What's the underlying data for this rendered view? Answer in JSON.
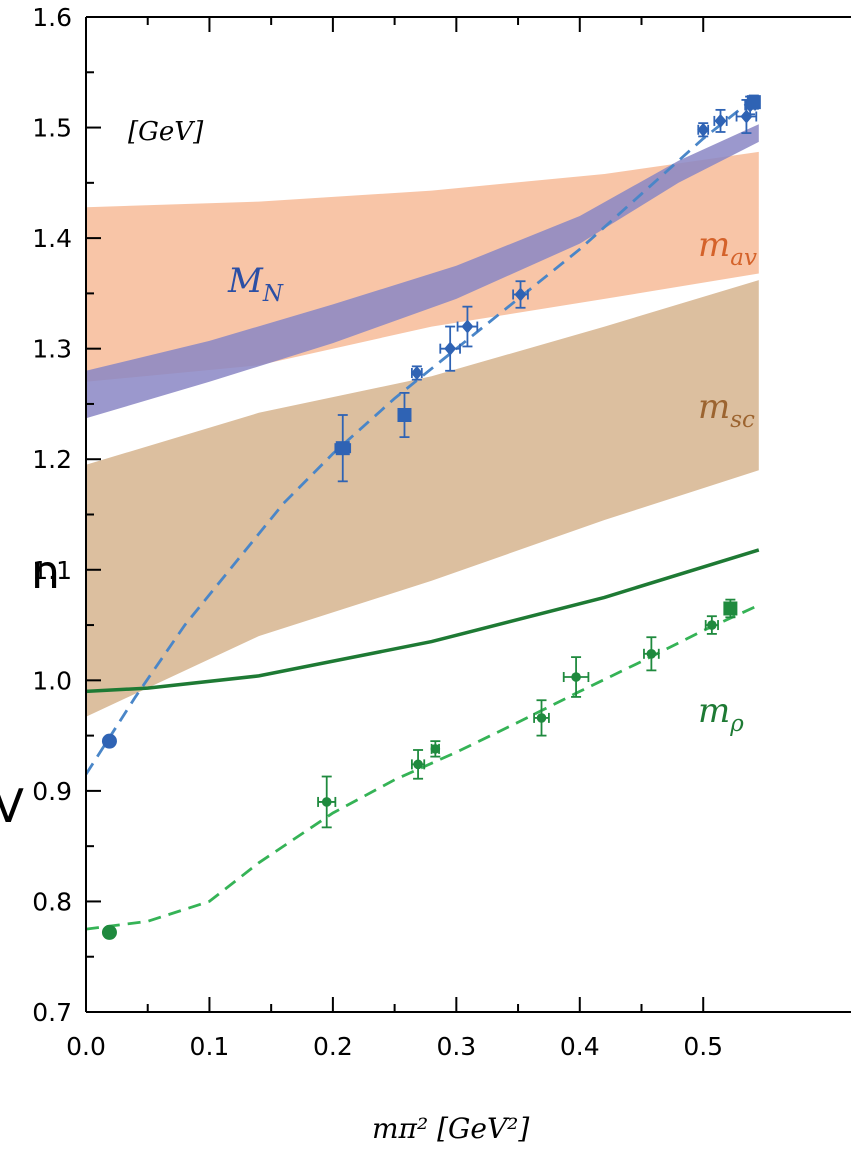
{
  "chart_data": {
    "type": "scatter",
    "units_label": "[GeV]",
    "xlabel": "mπ² [GeV²]",
    "xlim": [
      0.0,
      0.545
    ],
    "ylim": [
      0.7,
      1.6
    ],
    "x_ticks": [
      "0.0",
      "0.1",
      "0.2",
      "0.3",
      "0.4",
      "0.5"
    ],
    "y_ticks": [
      "0.7",
      "0.8",
      "0.9",
      "1.0",
      "1.1",
      "1.2",
      "1.3",
      "1.4",
      "1.5",
      "1.6"
    ],
    "clipped_left_text": [
      "n",
      "V"
    ],
    "labels": {
      "MN": {
        "base": "M",
        "sub": "N"
      },
      "mav": {
        "base": "m",
        "sub": "av"
      },
      "msc": {
        "base": "m",
        "sub": "sc"
      },
      "mrho": {
        "base": "m",
        "sub": "ρ"
      }
    },
    "colors": {
      "nucleon": "#2f63b4",
      "nucleon_dash": "#4a86c8",
      "rho": "#1f8a3e",
      "rho_dash": "#35b356",
      "rho_solid": "#1e7a34",
      "mav_band": "#f6b894",
      "msc_band": "#dcbf9f",
      "MN_band": "#8a86c4",
      "MN_label": "#2b4fa5",
      "mav_label": "#d4622a",
      "msc_label": "#9c6430",
      "mrho_label": "#1e7a34"
    },
    "bands": [
      {
        "name": "mav",
        "x": [
          0.0,
          0.14,
          0.28,
          0.42,
          0.545
        ],
        "lower": [
          1.27,
          1.285,
          1.32,
          1.345,
          1.368
        ],
        "upper": [
          1.428,
          1.433,
          1.443,
          1.458,
          1.478
        ]
      },
      {
        "name": "msc",
        "x": [
          0.0,
          0.14,
          0.28,
          0.42,
          0.545
        ],
        "lower": [
          0.967,
          1.04,
          1.09,
          1.145,
          1.19
        ],
        "upper": [
          1.195,
          1.242,
          1.275,
          1.32,
          1.362
        ]
      },
      {
        "name": "MN",
        "x": [
          0.0,
          0.1,
          0.2,
          0.3,
          0.4,
          0.48,
          0.545
        ],
        "lower": [
          1.237,
          1.27,
          1.305,
          1.345,
          1.395,
          1.45,
          1.487
        ],
        "upper": [
          1.28,
          1.307,
          1.34,
          1.375,
          1.42,
          1.47,
          1.503
        ]
      }
    ],
    "curves": [
      {
        "name": "rho-solid",
        "style": "solid",
        "x": [
          0.0,
          0.05,
          0.14,
          0.28,
          0.42,
          0.545
        ],
        "y": [
          0.99,
          0.993,
          1.004,
          1.035,
          1.075,
          1.118
        ]
      },
      {
        "name": "nucleon-dashed",
        "style": "dashed",
        "x": [
          0.0,
          0.04,
          0.08,
          0.12,
          0.16,
          0.2,
          0.25,
          0.3,
          0.35,
          0.4,
          0.45,
          0.5,
          0.545
        ],
        "y": [
          0.915,
          0.985,
          1.05,
          1.105,
          1.16,
          1.205,
          1.255,
          1.3,
          1.345,
          1.39,
          1.44,
          1.49,
          1.53
        ]
      },
      {
        "name": "rho-dashed",
        "style": "dashed",
        "x": [
          0.0,
          0.05,
          0.1,
          0.14,
          0.2,
          0.25,
          0.3,
          0.35,
          0.4,
          0.45,
          0.5,
          0.545
        ],
        "y": [
          0.775,
          0.782,
          0.8,
          0.835,
          0.88,
          0.91,
          0.935,
          0.962,
          0.99,
          1.017,
          1.045,
          1.068
        ]
      }
    ],
    "series": [
      {
        "name": "nucleon-physical",
        "marker": "circle",
        "points": [
          {
            "x": 0.019,
            "y": 0.945
          }
        ]
      },
      {
        "name": "nucleon-diamond",
        "marker": "diamond",
        "points": [
          {
            "x": 0.268,
            "y": 1.278,
            "xerr": 0.004,
            "yerr": 0.006
          },
          {
            "x": 0.295,
            "y": 1.3,
            "xerr": 0.008,
            "yerr": 0.02
          },
          {
            "x": 0.309,
            "y": 1.32,
            "xerr": 0.008,
            "yerr": 0.018
          },
          {
            "x": 0.352,
            "y": 1.349,
            "xerr": 0.006,
            "yerr": 0.012
          },
          {
            "x": 0.5,
            "y": 1.498,
            "xerr": 0.004,
            "yerr": 0.006
          },
          {
            "x": 0.514,
            "y": 1.506,
            "xerr": 0.005,
            "yerr": 0.01
          },
          {
            "x": 0.535,
            "y": 1.51,
            "xerr": 0.008,
            "yerr": 0.015
          },
          {
            "x": 0.538,
            "y": 1.52,
            "xerr": 0.004,
            "yerr": 0.008
          }
        ]
      },
      {
        "name": "nucleon-square",
        "marker": "square",
        "points": [
          {
            "x": 0.208,
            "y": 1.21,
            "xerr": 0.006,
            "yerr": 0.03
          },
          {
            "x": 0.258,
            "y": 1.24,
            "xerr": 0.004,
            "yerr": 0.02
          },
          {
            "x": 0.541,
            "y": 1.523,
            "xerr": 0.003,
            "yerr": 0.006
          }
        ]
      },
      {
        "name": "rho-physical",
        "marker": "circle",
        "points": [
          {
            "x": 0.019,
            "y": 0.772
          }
        ]
      },
      {
        "name": "rho-data",
        "marker": "smallcircle",
        "points": [
          {
            "x": 0.195,
            "y": 0.89,
            "xerr": 0.007,
            "yerr": 0.023
          },
          {
            "x": 0.269,
            "y": 0.924,
            "xerr": 0.005,
            "yerr": 0.013
          },
          {
            "x": 0.283,
            "y": 0.938,
            "xerr": 0.003,
            "yerr": 0.007
          },
          {
            "x": 0.369,
            "y": 0.966,
            "xerr": 0.006,
            "yerr": 0.016
          },
          {
            "x": 0.397,
            "y": 1.003,
            "xerr": 0.01,
            "yerr": 0.018
          },
          {
            "x": 0.458,
            "y": 1.024,
            "xerr": 0.006,
            "yerr": 0.015
          },
          {
            "x": 0.507,
            "y": 1.05,
            "xerr": 0.005,
            "yerr": 0.008
          }
        ]
      },
      {
        "name": "rho-square",
        "marker": "square",
        "points": [
          {
            "x": 0.522,
            "y": 1.065,
            "xerr": 0.004,
            "yerr": 0.008
          }
        ]
      }
    ]
  }
}
